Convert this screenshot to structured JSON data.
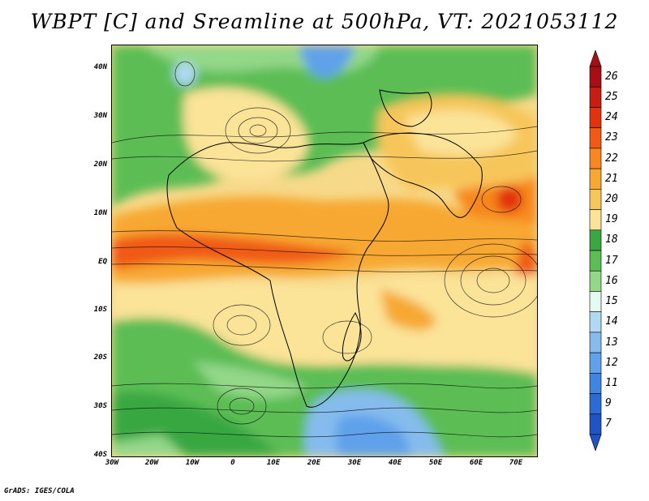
{
  "title": "WBPT [C] and Sreamline at 500hPa, VT: 2021053112",
  "credit": "GrADS: IGES/COLA",
  "lat_labels": [
    "40N",
    "30N",
    "20N",
    "10N",
    "EQ",
    "10S",
    "20S",
    "30S",
    "40S"
  ],
  "lon_labels": [
    "30W",
    "20W",
    "10W",
    "0",
    "10E",
    "20E",
    "30E",
    "40E",
    "50E",
    "60E",
    "70E"
  ],
  "colorbar": {
    "labels": [
      "26",
      "25",
      "24",
      "23",
      "22",
      "21",
      "20",
      "19",
      "18",
      "17",
      "16",
      "15",
      "14",
      "13",
      "12",
      "11",
      "9",
      "7"
    ],
    "colors": [
      "#a50f15",
      "#c81d12",
      "#e2330e",
      "#f05a14",
      "#f7871e",
      "#f7a833",
      "#f7c65a",
      "#fbe398",
      "#39a742",
      "#5cbd55",
      "#93d789",
      "#e3f9f2",
      "#b1d9f4",
      "#85bced",
      "#5fa1ea",
      "#3f85e2",
      "#2c6ad6",
      "#2053c4"
    ]
  },
  "map": {
    "lon_range": [
      -30,
      75
    ],
    "lat_range": [
      -40,
      45
    ],
    "variable": "wet-bulb potential temperature",
    "units": "C",
    "level": "500hPa",
    "valid_time": "2021053112"
  }
}
